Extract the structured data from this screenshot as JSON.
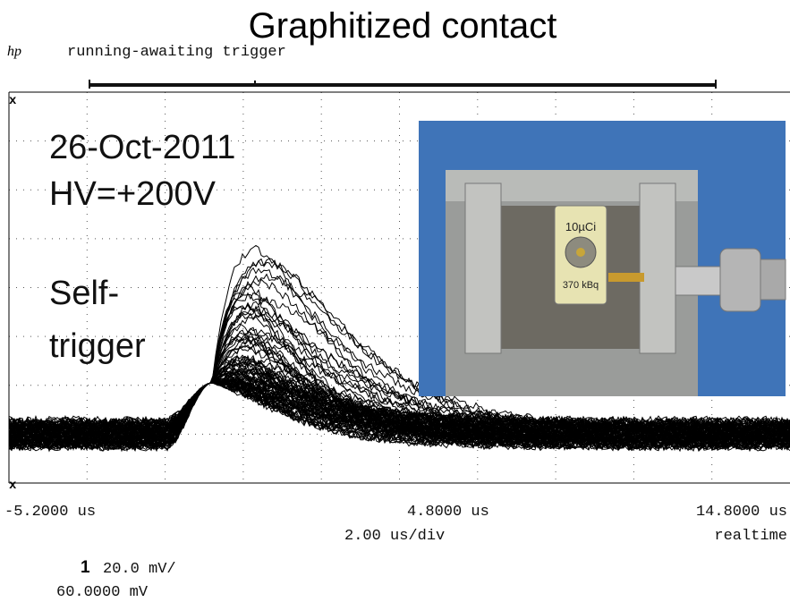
{
  "header": {
    "title": "Graphitized contact",
    "logo": "hp",
    "status": "running-awaiting trigger"
  },
  "annotations": {
    "date": "26-Oct-2011",
    "voltage": "HV=+200V",
    "mode_line1": "Self-",
    "mode_line2": "trigger"
  },
  "photo": {
    "label_top": "10µCi",
    "label_bottom": "370 kBq"
  },
  "time_axis": {
    "left": "-5.2000 us",
    "center": "4.8000 us",
    "right": "14.8000 us",
    "scale": "2.00 us/div",
    "mode": "realtime"
  },
  "channel": {
    "number": "1",
    "scale": "20.0 mV/",
    "offset": "60.0000 mV"
  }
}
